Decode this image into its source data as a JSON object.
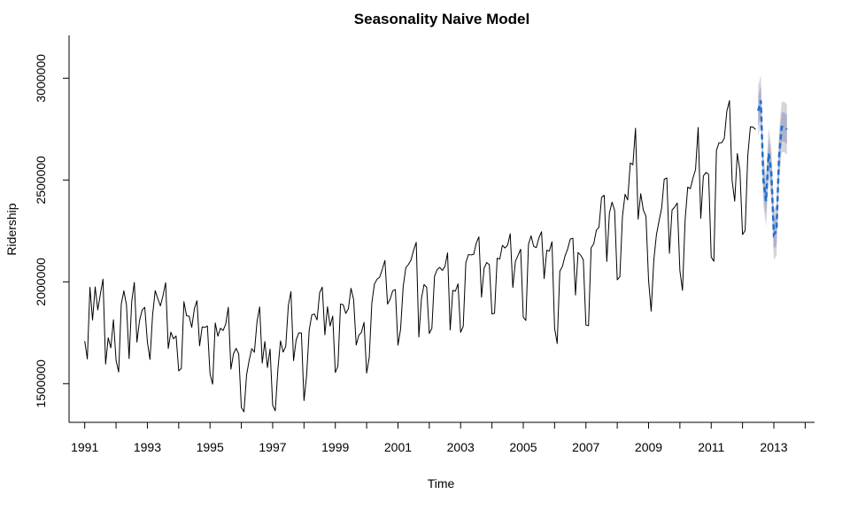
{
  "chart_data": {
    "type": "line",
    "title": "Seasonality Naive Model",
    "xlabel": "Time",
    "ylabel": "Ridership",
    "xlim": [
      1990.5,
      2014.3
    ],
    "ylim": [
      1310000,
      3210000
    ],
    "x_ticks": [
      1991,
      1993,
      1995,
      1997,
      1999,
      2001,
      2003,
      2005,
      2007,
      2009,
      2011,
      2013
    ],
    "x_minor_ticks": [
      1992,
      1994,
      1996,
      1998,
      2000,
      2002,
      2004,
      2006,
      2008,
      2010,
      2012,
      2014
    ],
    "y_ticks": [
      1500000,
      2000000,
      2500000,
      3000000
    ],
    "grid": false,
    "colors": {
      "observed": "#000000",
      "forecast": "#1f6fd1",
      "band_95": "#d4d4dc",
      "band_80": "#aeb1cc"
    },
    "series": [
      {
        "start": 1991.0,
        "frequency": 12,
        "values": [
          1709000,
          1621000,
          1973000,
          1812000,
          1975000,
          1862000,
          1940000,
          2013000,
          1596000,
          1725000,
          1676000,
          1814000,
          1615000,
          1557000,
          1891000,
          1956000,
          1885000,
          1623000,
          1903000,
          1997000,
          1704000,
          1810000,
          1862000,
          1875000,
          1705000,
          1619000,
          1837000,
          1957000,
          1917000,
          1882000,
          1933000,
          1996000,
          1673000,
          1753000,
          1720000,
          1734000,
          1563000,
          1574000,
          1903000,
          1834000,
          1831000,
          1776000,
          1868000,
          1907000,
          1686000,
          1779000,
          1776000,
          1783000,
          1548000,
          1497000,
          1798000,
          1733000,
          1772000,
          1761000,
          1792000,
          1875000,
          1571000,
          1647000,
          1673000,
          1646000,
          1383000,
          1362000,
          1542000,
          1615000,
          1672000,
          1654000,
          1804000,
          1877000,
          1601000,
          1707000,
          1579000,
          1670000,
          1394000,
          1367000,
          1570000,
          1710000,
          1655000,
          1682000,
          1883000,
          1952000,
          1613000,
          1715000,
          1749000,
          1749000,
          1417000,
          1539000,
          1763000,
          1838000,
          1842000,
          1813000,
          1947000,
          1974000,
          1740000,
          1878000,
          1783000,
          1832000,
          1555000,
          1586000,
          1891000,
          1888000,
          1845000,
          1868000,
          1968000,
          1914000,
          1690000,
          1737000,
          1752000,
          1801000,
          1552000,
          1629000,
          1898000,
          1990000,
          2013000,
          2023000,
          2062000,
          2105000,
          1891000,
          1915000,
          1956000,
          1962000,
          1689000,
          1767000,
          1977000,
          2069000,
          2085000,
          2107000,
          2156000,
          2194000,
          1729000,
          1919000,
          1987000,
          1973000,
          1746000,
          1773000,
          2027000,
          2060000,
          2071000,
          2056000,
          2076000,
          2142000,
          1764000,
          1958000,
          1954000,
          1990000,
          1752000,
          1781000,
          2094000,
          2134000,
          2132000,
          2135000,
          2190000,
          2221000,
          1925000,
          2067000,
          2095000,
          2084000,
          1842000,
          1846000,
          2116000,
          2112000,
          2179000,
          2166000,
          2180000,
          2236000,
          1972000,
          2101000,
          2130000,
          2160000,
          1827000,
          1810000,
          2184000,
          2226000,
          2174000,
          2168000,
          2216000,
          2246000,
          2016000,
          2155000,
          2151000,
          2197000,
          1773000,
          1697000,
          2052000,
          2076000,
          2127000,
          2161000,
          2210000,
          2214000,
          1935000,
          2144000,
          2131000,
          2108000,
          1788000,
          1785000,
          2167000,
          2187000,
          2253000,
          2268000,
          2415000,
          2425000,
          2100000,
          2337000,
          2391000,
          2351000,
          2010000,
          2025000,
          2321000,
          2430000,
          2402000,
          2584000,
          2575000,
          2754000,
          2308000,
          2433000,
          2352000,
          2322000,
          2007000,
          1856000,
          2104000,
          2230000,
          2298000,
          2361000,
          2504000,
          2510000,
          2140000,
          2353000,
          2367000,
          2387000,
          2055000,
          1958000,
          2303000,
          2465000,
          2458000,
          2509000,
          2552000,
          2758000,
          2312000,
          2520000,
          2537000,
          2528000,
          2122000,
          2101000,
          2646000,
          2683000,
          2683000,
          2704000,
          2839000,
          2890000,
          2498000,
          2396000,
          2630000,
          2546000,
          2232000,
          2252000,
          2618000,
          2761000,
          2760000,
          2748000
        ]
      }
    ],
    "forecast": {
      "start": 2012.5,
      "frequency": 12,
      "mean": [
        2839000,
        2890000,
        2498000,
        2396000,
        2630000,
        2546000,
        2232000,
        2252000,
        2618000,
        2761000,
        2760000,
        2748000
      ],
      "lo80": [
        2767000,
        2818000,
        2426000,
        2324000,
        2558000,
        2474000,
        2160000,
        2180000,
        2546000,
        2689000,
        2688000,
        2676000
      ],
      "hi80": [
        2911000,
        2962000,
        2570000,
        2468000,
        2702000,
        2618000,
        2304000,
        2324000,
        2690000,
        2833000,
        2832000,
        2820000
      ],
      "lo95": [
        2715000,
        2766000,
        2374000,
        2272000,
        2506000,
        2422000,
        2108000,
        2128000,
        2494000,
        2637000,
        2636000,
        2624000
      ],
      "hi95": [
        2963000,
        3014000,
        2622000,
        2520000,
        2754000,
        2670000,
        2356000,
        2376000,
        2742000,
        2885000,
        2884000,
        2872000
      ]
    }
  }
}
